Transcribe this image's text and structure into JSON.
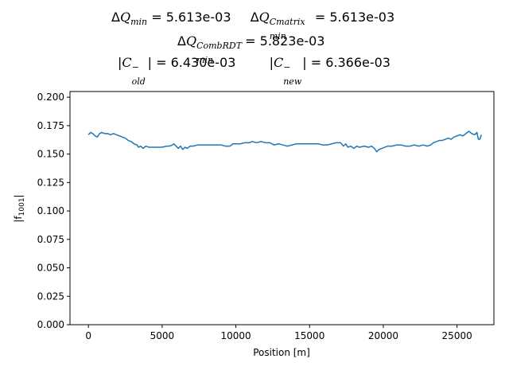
{
  "chart_data": {
    "type": "line",
    "title_lines": [
      {
        "parts": [
          {
            "label": "ΔQ",
            "sub": "min",
            "value": "= 5.613e-03"
          },
          {
            "label": "ΔQ",
            "sub": "min",
            "sup": "Cmatrix",
            "value": "= 5.613e-03"
          }
        ]
      },
      {
        "parts": [
          {
            "label": "ΔQ",
            "sub": "min",
            "sup": "CombRDT",
            "value": "= 5.823e-03"
          }
        ]
      },
      {
        "parts": [
          {
            "label": "|C",
            "sub": "old",
            "sup": "−",
            "value": "| = 6.430e-03"
          },
          {
            "label": "|C",
            "sub": "new",
            "sup": "−",
            "value": "| = 6.366e-03"
          }
        ]
      }
    ],
    "xlabel": "Position [m]",
    "ylabel": "|f1001|",
    "ylabel_main": "|f",
    "ylabel_sub": "1001",
    "ylabel_end": "|",
    "xlim": [
      -1250,
      27500
    ],
    "ylim": [
      0.0,
      0.205
    ],
    "xticks": [
      0,
      5000,
      10000,
      15000,
      20000,
      25000
    ],
    "yticks": [
      "0.000",
      "0.025",
      "0.050",
      "0.075",
      "0.100",
      "0.125",
      "0.150",
      "0.175",
      "0.200"
    ],
    "grid": false,
    "series": [
      {
        "color": "#1f77b4",
        "points": [
          [
            0,
            0.167
          ],
          [
            150,
            0.169
          ],
          [
            300,
            0.168
          ],
          [
            450,
            0.166
          ],
          [
            600,
            0.165
          ],
          [
            750,
            0.168
          ],
          [
            900,
            0.169
          ],
          [
            1100,
            0.168
          ],
          [
            1300,
            0.168
          ],
          [
            1500,
            0.167
          ],
          [
            1700,
            0.168
          ],
          [
            1900,
            0.167
          ],
          [
            2100,
            0.166
          ],
          [
            2300,
            0.165
          ],
          [
            2500,
            0.164
          ],
          [
            2700,
            0.162
          ],
          [
            2900,
            0.161
          ],
          [
            3100,
            0.159
          ],
          [
            3300,
            0.158
          ],
          [
            3400,
            0.156
          ],
          [
            3550,
            0.157
          ],
          [
            3700,
            0.155
          ],
          [
            3900,
            0.157
          ],
          [
            4100,
            0.156
          ],
          [
            4400,
            0.156
          ],
          [
            4700,
            0.156
          ],
          [
            5000,
            0.156
          ],
          [
            5300,
            0.157
          ],
          [
            5500,
            0.157
          ],
          [
            5700,
            0.158
          ],
          [
            5800,
            0.159
          ],
          [
            5950,
            0.157
          ],
          [
            6100,
            0.155
          ],
          [
            6250,
            0.157
          ],
          [
            6400,
            0.154
          ],
          [
            6550,
            0.156
          ],
          [
            6700,
            0.155
          ],
          [
            6900,
            0.157
          ],
          [
            7100,
            0.157
          ],
          [
            7400,
            0.158
          ],
          [
            7800,
            0.158
          ],
          [
            8200,
            0.158
          ],
          [
            8600,
            0.158
          ],
          [
            9000,
            0.158
          ],
          [
            9300,
            0.157
          ],
          [
            9600,
            0.157
          ],
          [
            9800,
            0.159
          ],
          [
            10000,
            0.159
          ],
          [
            10300,
            0.159
          ],
          [
            10600,
            0.16
          ],
          [
            10900,
            0.16
          ],
          [
            11100,
            0.161
          ],
          [
            11400,
            0.16
          ],
          [
            11700,
            0.161
          ],
          [
            12000,
            0.16
          ],
          [
            12300,
            0.16
          ],
          [
            12600,
            0.158
          ],
          [
            12900,
            0.159
          ],
          [
            13200,
            0.158
          ],
          [
            13500,
            0.157
          ],
          [
            13800,
            0.158
          ],
          [
            14100,
            0.159
          ],
          [
            14400,
            0.159
          ],
          [
            14700,
            0.159
          ],
          [
            15000,
            0.159
          ],
          [
            15300,
            0.159
          ],
          [
            15600,
            0.159
          ],
          [
            15900,
            0.158
          ],
          [
            16200,
            0.158
          ],
          [
            16500,
            0.159
          ],
          [
            16800,
            0.16
          ],
          [
            17100,
            0.16
          ],
          [
            17300,
            0.157
          ],
          [
            17450,
            0.159
          ],
          [
            17600,
            0.156
          ],
          [
            17800,
            0.157
          ],
          [
            18000,
            0.155
          ],
          [
            18200,
            0.157
          ],
          [
            18400,
            0.156
          ],
          [
            18700,
            0.157
          ],
          [
            19000,
            0.156
          ],
          [
            19200,
            0.157
          ],
          [
            19400,
            0.155
          ],
          [
            19550,
            0.152
          ],
          [
            19700,
            0.154
          ],
          [
            19900,
            0.155
          ],
          [
            20100,
            0.156
          ],
          [
            20300,
            0.157
          ],
          [
            20600,
            0.157
          ],
          [
            20900,
            0.158
          ],
          [
            21200,
            0.158
          ],
          [
            21500,
            0.157
          ],
          [
            21800,
            0.157
          ],
          [
            22100,
            0.158
          ],
          [
            22400,
            0.157
          ],
          [
            22700,
            0.158
          ],
          [
            23000,
            0.157
          ],
          [
            23200,
            0.158
          ],
          [
            23400,
            0.16
          ],
          [
            23600,
            0.161
          ],
          [
            23800,
            0.162
          ],
          [
            24000,
            0.162
          ],
          [
            24200,
            0.163
          ],
          [
            24400,
            0.164
          ],
          [
            24600,
            0.163
          ],
          [
            24800,
            0.165
          ],
          [
            25000,
            0.166
          ],
          [
            25200,
            0.167
          ],
          [
            25400,
            0.166
          ],
          [
            25600,
            0.168
          ],
          [
            25800,
            0.17
          ],
          [
            26000,
            0.168
          ],
          [
            26200,
            0.167
          ],
          [
            26350,
            0.169
          ],
          [
            26450,
            0.163
          ],
          [
            26550,
            0.163
          ],
          [
            26650,
            0.167
          ]
        ]
      }
    ]
  }
}
